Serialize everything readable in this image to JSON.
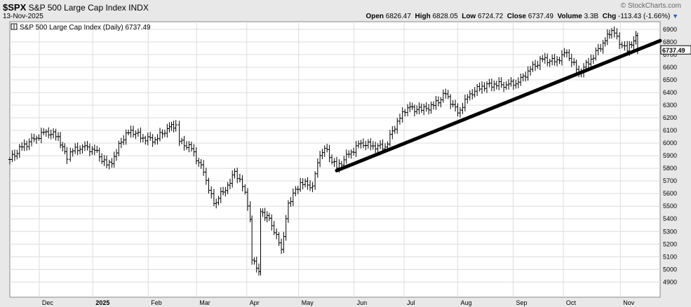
{
  "header": {
    "symbol": "$SPX",
    "name": "S&P 500 Large Cap Index",
    "exchange": "INDX",
    "date": "13-Nov-2025",
    "brand": "© StockCharts.com",
    "open_label": "Open",
    "open": "6826.47",
    "high_label": "High",
    "high": "6828.05",
    "low_label": "Low",
    "low": "6724.72",
    "close_label": "Close",
    "close": "6737.49",
    "volume_label": "Volume",
    "volume": "3.3B",
    "chg_label": "Chg",
    "chg": "-113.43 (-1.66%)"
  },
  "chart_data": {
    "type": "line",
    "style": "ohlc-bars",
    "legend": "S&P 500 Large Cap Index (Daily) 6737.49",
    "last_value_label": "6737.49",
    "y_ticks": [
      4900,
      5000,
      5100,
      5200,
      5300,
      5400,
      5500,
      5600,
      5700,
      5800,
      5900,
      6000,
      6100,
      6200,
      6300,
      6400,
      6500,
      6600,
      6700,
      6800,
      6900
    ],
    "ylim": [
      4780,
      6960
    ],
    "x_labels": [
      {
        "label": "Dec",
        "date": "2024-12-02",
        "bold": false
      },
      {
        "label": "2025",
        "date": "2025-01-02",
        "bold": true
      },
      {
        "label": "Feb",
        "date": "2025-02-03",
        "bold": false
      },
      {
        "label": "Mar",
        "date": "2025-03-03",
        "bold": false
      },
      {
        "label": "Apr",
        "date": "2025-04-01",
        "bold": false
      },
      {
        "label": "May",
        "date": "2025-05-01",
        "bold": false
      },
      {
        "label": "Jun",
        "date": "2025-06-02",
        "bold": false
      },
      {
        "label": "Jul",
        "date": "2025-07-01",
        "bold": false
      },
      {
        "label": "Aug",
        "date": "2025-08-01",
        "bold": false
      },
      {
        "label": "Sep",
        "date": "2025-09-02",
        "bold": false
      },
      {
        "label": "Oct",
        "date": "2025-10-01",
        "bold": false
      },
      {
        "label": "Nov",
        "date": "2025-11-03",
        "bold": false
      }
    ],
    "xlim": [
      "2024-11-15",
      "2025-11-26"
    ],
    "series": [
      {
        "x": [
          "2024-11-15",
          "2024-11-22",
          "2024-11-29",
          "2024-12-06",
          "2024-12-13",
          "2024-12-18",
          "2024-12-20",
          "2024-12-27",
          "2025-01-03",
          "2025-01-10",
          "2025-01-13",
          "2025-01-17",
          "2025-01-24",
          "2025-01-31",
          "2025-02-07",
          "2025-02-14",
          "2025-02-19",
          "2025-02-21",
          "2025-02-28",
          "2025-03-07",
          "2025-03-13",
          "2025-03-21",
          "2025-03-25",
          "2025-03-31",
          "2025-04-03",
          "2025-04-04",
          "2025-04-08",
          "2025-04-09",
          "2025-04-14",
          "2025-04-21",
          "2025-04-25",
          "2025-05-02",
          "2025-05-09",
          "2025-05-12",
          "2025-05-16",
          "2025-05-23",
          "2025-05-30",
          "2025-06-06",
          "2025-06-13",
          "2025-06-20",
          "2025-06-27",
          "2025-07-03",
          "2025-07-11",
          "2025-07-18",
          "2025-07-25",
          "2025-08-01",
          "2025-08-08",
          "2025-08-15",
          "2025-08-22",
          "2025-08-29",
          "2025-09-05",
          "2025-09-12",
          "2025-09-19",
          "2025-09-26",
          "2025-10-03",
          "2025-10-10",
          "2025-10-17",
          "2025-10-24",
          "2025-10-29",
          "2025-11-04",
          "2025-11-07",
          "2025-11-12",
          "2025-11-13"
        ],
        "close": [
          5870,
          5969,
          6032,
          6090,
          6051,
          5872,
          5930,
          5970,
          5942,
          5827,
          5836,
          5997,
          6101,
          6040,
          6026,
          6114,
          6144,
          6013,
          5955,
          5770,
          5521,
          5667,
          5776,
          5611,
          5396,
          5074,
          4982,
          5457,
          5405,
          5158,
          5525,
          5687,
          5660,
          5844,
          5958,
          5802,
          5912,
          6000,
          5977,
          5968,
          6173,
          6279,
          6259,
          6297,
          6389,
          6238,
          6389,
          6450,
          6467,
          6460,
          6482,
          6584,
          6664,
          6643,
          6716,
          6552,
          6664,
          6791,
          6890,
          6771,
          6728,
          6851,
          6737
        ]
      }
    ],
    "trendline": {
      "x": [
        "2025-05-23",
        "2025-11-26"
      ],
      "y": [
        5782,
        6810
      ]
    }
  }
}
